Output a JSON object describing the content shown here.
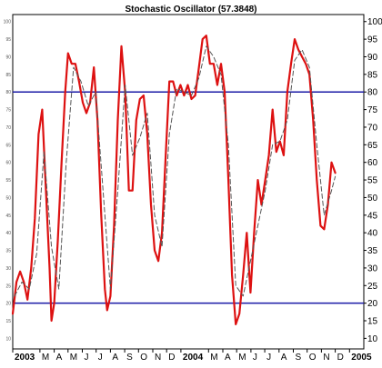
{
  "chart_data": {
    "type": "line",
    "title": "Stochastic Oscillator (57.3848)",
    "xlabel": "",
    "ylabel": "",
    "x_start": "2003-01",
    "x_end": "2005-02",
    "ylim": [
      7,
      102
    ],
    "y_ticks": [
      10,
      15,
      20,
      25,
      30,
      35,
      40,
      45,
      50,
      55,
      60,
      65,
      70,
      75,
      80,
      85,
      90,
      95,
      100
    ],
    "x_tick_labels": [
      {
        "label": "2003",
        "x": "2003-01",
        "year": true
      },
      {
        "label": "M",
        "x": "2003-03"
      },
      {
        "label": "A",
        "x": "2003-04"
      },
      {
        "label": "M",
        "x": "2003-05"
      },
      {
        "label": "J",
        "x": "2003-06"
      },
      {
        "label": "J",
        "x": "2003-07"
      },
      {
        "label": "A",
        "x": "2003-08"
      },
      {
        "label": "S",
        "x": "2003-09"
      },
      {
        "label": "O",
        "x": "2003-10"
      },
      {
        "label": "N",
        "x": "2003-11"
      },
      {
        "label": "D",
        "x": "2003-12"
      },
      {
        "label": "2004",
        "x": "2004-01",
        "year": true
      },
      {
        "label": "M",
        "x": "2004-03"
      },
      {
        "label": "A",
        "x": "2004-04"
      },
      {
        "label": "M",
        "x": "2004-05"
      },
      {
        "label": "J",
        "x": "2004-06"
      },
      {
        "label": "J",
        "x": "2004-07"
      },
      {
        "label": "A",
        "x": "2004-08"
      },
      {
        "label": "S",
        "x": "2004-09"
      },
      {
        "label": "O",
        "x": "2004-10"
      },
      {
        "label": "N",
        "x": "2004-11"
      },
      {
        "label": "D",
        "x": "2004-12"
      },
      {
        "label": "2005",
        "x": "2005-01",
        "year": true
      }
    ],
    "reference_lines": [
      {
        "y": 80,
        "color": "#1a1aa6"
      },
      {
        "y": 20,
        "color": "#1a1aa6"
      }
    ],
    "grid": false,
    "legend": "none",
    "series": [
      {
        "color": "#dd1111",
        "style": "solid",
        "points": [
          [
            "2003-01-01",
            17
          ],
          [
            "2003-01-09",
            26
          ],
          [
            "2003-01-17",
            29
          ],
          [
            "2003-01-25",
            26
          ],
          [
            "2003-02-02",
            21
          ],
          [
            "2003-02-10",
            30
          ],
          [
            "2003-02-18",
            44
          ],
          [
            "2003-02-26",
            68
          ],
          [
            "2003-03-06",
            75
          ],
          [
            "2003-03-14",
            52
          ],
          [
            "2003-03-22",
            30
          ],
          [
            "2003-03-26",
            15
          ],
          [
            "2003-04-01",
            20
          ],
          [
            "2003-04-09",
            38
          ],
          [
            "2003-04-17",
            60
          ],
          [
            "2003-04-25",
            80
          ],
          [
            "2003-05-01",
            91
          ],
          [
            "2003-05-09",
            88
          ],
          [
            "2003-05-17",
            88
          ],
          [
            "2003-05-25",
            83
          ],
          [
            "2003-06-02",
            77
          ],
          [
            "2003-06-10",
            74
          ],
          [
            "2003-06-18",
            77
          ],
          [
            "2003-06-26",
            87
          ],
          [
            "2003-07-04",
            72
          ],
          [
            "2003-07-12",
            45
          ],
          [
            "2003-07-20",
            24
          ],
          [
            "2003-07-25",
            18
          ],
          [
            "2003-08-01",
            22
          ],
          [
            "2003-08-09",
            42
          ],
          [
            "2003-08-17",
            72
          ],
          [
            "2003-08-25",
            93
          ],
          [
            "2003-09-02",
            80
          ],
          [
            "2003-09-10",
            52
          ],
          [
            "2003-09-18",
            52
          ],
          [
            "2003-09-26",
            72
          ],
          [
            "2003-10-04",
            78
          ],
          [
            "2003-10-12",
            79
          ],
          [
            "2003-10-20",
            68
          ],
          [
            "2003-10-28",
            48
          ],
          [
            "2003-11-05",
            35
          ],
          [
            "2003-11-13",
            32
          ],
          [
            "2003-11-21",
            40
          ],
          [
            "2003-11-29",
            62
          ],
          [
            "2003-12-07",
            83
          ],
          [
            "2003-12-15",
            83
          ],
          [
            "2003-12-23",
            79
          ],
          [
            "2003-12-31",
            82
          ],
          [
            "2004-01-08",
            79
          ],
          [
            "2004-01-16",
            82
          ],
          [
            "2004-01-24",
            78
          ],
          [
            "2004-02-01",
            79
          ],
          [
            "2004-02-09",
            87
          ],
          [
            "2004-02-17",
            95
          ],
          [
            "2004-02-25",
            96
          ],
          [
            "2004-03-04",
            88
          ],
          [
            "2004-03-12",
            88
          ],
          [
            "2004-03-20",
            82
          ],
          [
            "2004-03-28",
            88
          ],
          [
            "2004-04-05",
            80
          ],
          [
            "2004-04-13",
            55
          ],
          [
            "2004-04-21",
            28
          ],
          [
            "2004-04-29",
            14
          ],
          [
            "2004-05-07",
            17
          ],
          [
            "2004-05-15",
            28
          ],
          [
            "2004-05-23",
            40
          ],
          [
            "2004-05-31",
            23
          ],
          [
            "2004-06-08",
            40
          ],
          [
            "2004-06-16",
            55
          ],
          [
            "2004-06-24",
            48
          ],
          [
            "2004-07-02",
            55
          ],
          [
            "2004-07-10",
            62
          ],
          [
            "2004-07-18",
            75
          ],
          [
            "2004-07-26",
            63
          ],
          [
            "2004-08-03",
            66
          ],
          [
            "2004-08-11",
            62
          ],
          [
            "2004-08-19",
            80
          ],
          [
            "2004-08-27",
            88
          ],
          [
            "2004-09-04",
            95
          ],
          [
            "2004-09-12",
            92
          ],
          [
            "2004-09-20",
            90
          ],
          [
            "2004-09-28",
            88
          ],
          [
            "2004-10-06",
            85
          ],
          [
            "2004-10-14",
            72
          ],
          [
            "2004-10-22",
            55
          ],
          [
            "2004-10-30",
            42
          ],
          [
            "2004-11-07",
            41
          ],
          [
            "2004-11-15",
            48
          ],
          [
            "2004-11-23",
            60
          ],
          [
            "2004-12-01",
            57
          ]
        ]
      },
      {
        "color": "#555555",
        "style": "dashed",
        "points": [
          [
            "2003-01-05",
            22
          ],
          [
            "2003-01-21",
            26
          ],
          [
            "2003-02-06",
            24
          ],
          [
            "2003-02-22",
            34
          ],
          [
            "2003-03-10",
            63
          ],
          [
            "2003-03-26",
            36
          ],
          [
            "2003-04-11",
            24
          ],
          [
            "2003-04-27",
            60
          ],
          [
            "2003-05-13",
            87
          ],
          [
            "2003-05-29",
            83
          ],
          [
            "2003-06-14",
            76
          ],
          [
            "2003-06-30",
            80
          ],
          [
            "2003-07-16",
            52
          ],
          [
            "2003-08-01",
            24
          ],
          [
            "2003-08-17",
            52
          ],
          [
            "2003-09-02",
            82
          ],
          [
            "2003-09-18",
            62
          ],
          [
            "2003-10-04",
            67
          ],
          [
            "2003-10-20",
            74
          ],
          [
            "2003-11-05",
            45
          ],
          [
            "2003-11-21",
            36
          ],
          [
            "2003-12-07",
            68
          ],
          [
            "2003-12-23",
            81
          ],
          [
            "2004-01-08",
            80
          ],
          [
            "2004-01-24",
            79
          ],
          [
            "2004-02-09",
            84
          ],
          [
            "2004-02-25",
            93
          ],
          [
            "2004-03-12",
            90
          ],
          [
            "2004-03-28",
            85
          ],
          [
            "2004-04-13",
            65
          ],
          [
            "2004-04-29",
            25
          ],
          [
            "2004-05-15",
            22
          ],
          [
            "2004-05-31",
            32
          ],
          [
            "2004-06-16",
            42
          ],
          [
            "2004-07-02",
            52
          ],
          [
            "2004-07-18",
            65
          ],
          [
            "2004-08-03",
            66
          ],
          [
            "2004-08-19",
            72
          ],
          [
            "2004-09-04",
            89
          ],
          [
            "2004-09-20",
            92
          ],
          [
            "2004-10-06",
            87
          ],
          [
            "2004-10-22",
            65
          ],
          [
            "2004-11-07",
            45
          ],
          [
            "2004-11-23",
            52
          ],
          [
            "2004-12-01",
            56
          ]
        ]
      }
    ]
  }
}
